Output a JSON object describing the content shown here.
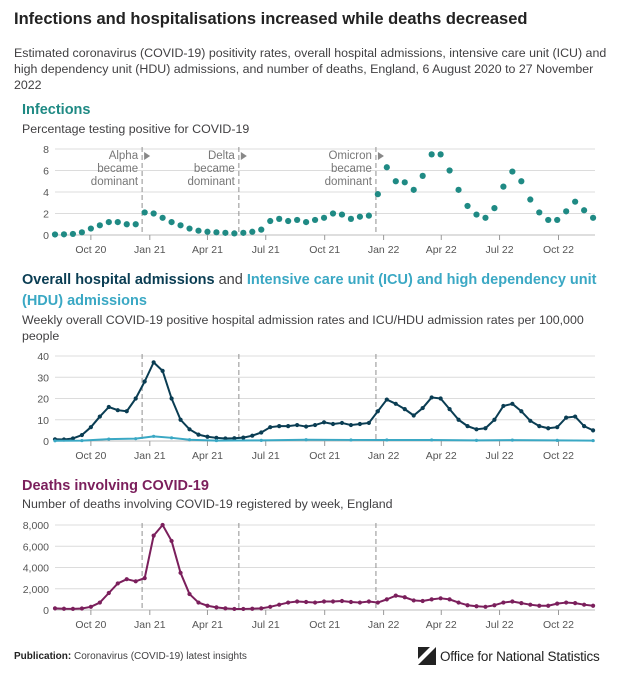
{
  "title": "Infections and hospitalisations increased while deaths decreased",
  "subtitle": "Estimated coronavirus (COVID-19) positivity rates, overall hospital admissions, intensive care unit (ICU) and high dependency unit (HDU) admissions, and number of deaths, England, 6 August 2020 to 27 November 2022",
  "colors": {
    "infections": "#1f8a84",
    "hospital": "#0a3d53",
    "icu": "#3aa8c4",
    "deaths": "#7b1f5c",
    "grid": "#dcdcdc",
    "vline": "#9a9a9a"
  },
  "sections": {
    "infections": {
      "title": "Infections",
      "subtitle": "Percentage testing positive for COVID-19"
    },
    "hospital": {
      "title_part1": "Overall hospital admissions",
      "title_part2": " and ",
      "title_part3": "Intensive care unit (ICU) and high dependency unit (HDU) admissions",
      "subtitle": "Weekly overall COVID-19 positive hospital admission rates and ICU/HDU admission rates per 100,000 people"
    },
    "deaths": {
      "title": "Deaths involving COVID-19",
      "subtitle": "Number of deaths involving COVID-19 registered by week, England"
    }
  },
  "footer": {
    "label": "Publication:",
    "text": "Coronavirus (COVID-19) latest insights"
  },
  "brand": "Office for National Statistics",
  "chart_data": [
    {
      "type": "scatter",
      "name": "infections",
      "x_range": [
        "2020-08-06",
        "2022-11-27"
      ],
      "ylim": [
        0,
        8
      ],
      "y_ticks": [
        "0",
        "2",
        "4",
        "6",
        "8"
      ],
      "x_ticks": [
        {
          "date": "2020-10-01",
          "label": "Oct 20"
        },
        {
          "date": "2021-01-01",
          "label": "Jan 21"
        },
        {
          "date": "2021-04-01",
          "label": "Apr 21"
        },
        {
          "date": "2021-07-01",
          "label": "Jul 21"
        },
        {
          "date": "2021-10-01",
          "label": "Oct 21"
        },
        {
          "date": "2022-01-01",
          "label": "Jan 22"
        },
        {
          "date": "2022-04-01",
          "label": "Apr 22"
        },
        {
          "date": "2022-07-01",
          "label": "Jul 22"
        },
        {
          "date": "2022-10-01",
          "label": "Oct 22"
        }
      ],
      "annotations": [
        {
          "date": "2020-12-20",
          "lines": [
            "Alpha",
            "became",
            "dominant"
          ]
        },
        {
          "date": "2021-05-20",
          "lines": [
            "Delta",
            "became",
            "dominant"
          ]
        },
        {
          "date": "2021-12-20",
          "lines": [
            "Omicron",
            "became",
            "dominant"
          ]
        }
      ],
      "series": [
        {
          "x": [
            "2020-08-06",
            "2020-08-20",
            "2020-09-03",
            "2020-09-17",
            "2020-10-01",
            "2020-10-15",
            "2020-10-29",
            "2020-11-12",
            "2020-11-26",
            "2020-12-10",
            "2020-12-24",
            "2021-01-07",
            "2021-01-21",
            "2021-02-04",
            "2021-02-18",
            "2021-03-04",
            "2021-03-18",
            "2021-04-01",
            "2021-04-15",
            "2021-04-29",
            "2021-05-13",
            "2021-05-27",
            "2021-06-10",
            "2021-06-24",
            "2021-07-08",
            "2021-07-22",
            "2021-08-05",
            "2021-08-19",
            "2021-09-02",
            "2021-09-16",
            "2021-09-30",
            "2021-10-14",
            "2021-10-28",
            "2021-11-11",
            "2021-11-25",
            "2021-12-09",
            "2021-12-23",
            "2022-01-06",
            "2022-01-20",
            "2022-02-03",
            "2022-02-17",
            "2022-03-03",
            "2022-03-17",
            "2022-03-31",
            "2022-04-14",
            "2022-04-28",
            "2022-05-12",
            "2022-05-26",
            "2022-06-09",
            "2022-06-23",
            "2022-07-07",
            "2022-07-21",
            "2022-08-04",
            "2022-08-18",
            "2022-09-01",
            "2022-09-15",
            "2022-09-29",
            "2022-10-13",
            "2022-10-27",
            "2022-11-10",
            "2022-11-24"
          ],
          "y": [
            0.05,
            0.06,
            0.1,
            0.25,
            0.6,
            0.9,
            1.2,
            1.2,
            1.0,
            1.0,
            2.1,
            2.0,
            1.6,
            1.2,
            0.9,
            0.6,
            0.4,
            0.3,
            0.25,
            0.2,
            0.15,
            0.2,
            0.3,
            0.5,
            1.3,
            1.5,
            1.3,
            1.4,
            1.2,
            1.4,
            1.6,
            2.0,
            1.9,
            1.5,
            1.7,
            1.8,
            3.8,
            6.3,
            5.0,
            4.9,
            4.2,
            5.5,
            7.5,
            7.5,
            6.0,
            4.2,
            2.7,
            1.9,
            1.6,
            2.5,
            4.5,
            5.9,
            5.0,
            3.3,
            2.1,
            1.4,
            1.4,
            2.2,
            3.1,
            2.3,
            1.6
          ]
        }
      ]
    },
    {
      "type": "line",
      "name": "hospital",
      "x_range": [
        "2020-08-06",
        "2022-11-27"
      ],
      "ylim": [
        0,
        40
      ],
      "y_ticks": [
        "0",
        "10",
        "20",
        "30",
        "40"
      ],
      "x_ticks": [
        {
          "date": "2020-10-01",
          "label": "Oct 20"
        },
        {
          "date": "2021-01-01",
          "label": "Jan 21"
        },
        {
          "date": "2021-04-01",
          "label": "Apr 21"
        },
        {
          "date": "2021-07-01",
          "label": "Jul 21"
        },
        {
          "date": "2021-10-01",
          "label": "Oct 21"
        },
        {
          "date": "2022-01-01",
          "label": "Jan 22"
        },
        {
          "date": "2022-04-01",
          "label": "Apr 22"
        },
        {
          "date": "2022-07-01",
          "label": "Jul 22"
        },
        {
          "date": "2022-10-01",
          "label": "Oct 22"
        }
      ],
      "vlines": [
        "2020-12-20",
        "2021-05-20",
        "2021-12-20"
      ],
      "series": [
        {
          "name": "Overall hospital admissions",
          "x": [
            "2020-08-06",
            "2020-08-20",
            "2020-09-03",
            "2020-09-17",
            "2020-10-01",
            "2020-10-15",
            "2020-10-29",
            "2020-11-12",
            "2020-11-26",
            "2020-12-10",
            "2020-12-24",
            "2021-01-07",
            "2021-01-21",
            "2021-02-04",
            "2021-02-18",
            "2021-03-04",
            "2021-03-18",
            "2021-04-01",
            "2021-04-15",
            "2021-04-29",
            "2021-05-13",
            "2021-05-27",
            "2021-06-10",
            "2021-06-24",
            "2021-07-08",
            "2021-07-22",
            "2021-08-05",
            "2021-08-19",
            "2021-09-02",
            "2021-09-16",
            "2021-09-30",
            "2021-10-14",
            "2021-10-28",
            "2021-11-11",
            "2021-11-25",
            "2021-12-09",
            "2021-12-23",
            "2022-01-06",
            "2022-01-20",
            "2022-02-03",
            "2022-02-17",
            "2022-03-03",
            "2022-03-17",
            "2022-03-31",
            "2022-04-14",
            "2022-04-28",
            "2022-05-12",
            "2022-05-26",
            "2022-06-09",
            "2022-06-23",
            "2022-07-07",
            "2022-07-21",
            "2022-08-04",
            "2022-08-18",
            "2022-09-01",
            "2022-09-15",
            "2022-09-29",
            "2022-10-13",
            "2022-10-27",
            "2022-11-10",
            "2022-11-24"
          ],
          "y": [
            0.8,
            0.7,
            1.2,
            2.8,
            6.5,
            11.5,
            16.0,
            14.5,
            14.0,
            20.0,
            28.0,
            37.0,
            33.0,
            20.0,
            10.0,
            5.5,
            3.0,
            2.0,
            1.5,
            1.2,
            1.3,
            1.6,
            2.5,
            4.0,
            6.5,
            7.0,
            7.0,
            7.5,
            6.8,
            7.5,
            8.8,
            8.0,
            8.5,
            7.5,
            8.0,
            8.5,
            14.0,
            19.5,
            17.5,
            15.0,
            12.0,
            15.5,
            20.5,
            20.0,
            15.0,
            10.0,
            7.0,
            5.5,
            6.0,
            10.0,
            16.5,
            17.5,
            14.0,
            9.5,
            7.0,
            6.0,
            6.5,
            11.0,
            11.5,
            7.0,
            5.0
          ]
        },
        {
          "name": "Intensive care unit (ICU) and high dependency unit (HDU) admissions",
          "x": [
            "2020-08-06",
            "2020-09-17",
            "2020-10-29",
            "2020-12-10",
            "2021-01-07",
            "2021-02-04",
            "2021-03-04",
            "2021-04-15",
            "2021-06-24",
            "2021-09-02",
            "2021-11-11",
            "2022-01-06",
            "2022-03-17",
            "2022-05-26",
            "2022-07-21",
            "2022-09-29",
            "2022-11-24"
          ],
          "y": [
            0.1,
            0.2,
            0.9,
            1.1,
            2.2,
            1.5,
            0.6,
            0.2,
            0.3,
            0.6,
            0.5,
            0.5,
            0.5,
            0.3,
            0.4,
            0.3,
            0.2
          ]
        }
      ]
    },
    {
      "type": "line",
      "name": "deaths",
      "x_range": [
        "2020-08-06",
        "2022-11-27"
      ],
      "ylim": [
        0,
        8000
      ],
      "y_ticks": [
        "0",
        "2,000",
        "4,000",
        "6,000",
        "8,000"
      ],
      "x_ticks": [
        {
          "date": "2020-10-01",
          "label": "Oct 20"
        },
        {
          "date": "2021-01-01",
          "label": "Jan 21"
        },
        {
          "date": "2021-04-01",
          "label": "Apr 21"
        },
        {
          "date": "2021-07-01",
          "label": "Jul 21"
        },
        {
          "date": "2021-10-01",
          "label": "Oct 21"
        },
        {
          "date": "2022-01-01",
          "label": "Jan 22"
        },
        {
          "date": "2022-04-01",
          "label": "Apr 22"
        },
        {
          "date": "2022-07-01",
          "label": "Jul 22"
        },
        {
          "date": "2022-10-01",
          "label": "Oct 22"
        }
      ],
      "vlines": [
        "2020-12-20",
        "2021-05-20",
        "2021-12-20"
      ],
      "series": [
        {
          "name": "Deaths involving COVID-19",
          "x": [
            "2020-08-06",
            "2020-08-20",
            "2020-09-03",
            "2020-09-17",
            "2020-10-01",
            "2020-10-15",
            "2020-10-29",
            "2020-11-12",
            "2020-11-26",
            "2020-12-10",
            "2020-12-24",
            "2021-01-07",
            "2021-01-21",
            "2021-02-04",
            "2021-02-18",
            "2021-03-04",
            "2021-03-18",
            "2021-04-01",
            "2021-04-15",
            "2021-04-29",
            "2021-05-13",
            "2021-05-27",
            "2021-06-10",
            "2021-06-24",
            "2021-07-08",
            "2021-07-22",
            "2021-08-05",
            "2021-08-19",
            "2021-09-02",
            "2021-09-16",
            "2021-09-30",
            "2021-10-14",
            "2021-10-28",
            "2021-11-11",
            "2021-11-25",
            "2021-12-09",
            "2021-12-23",
            "2022-01-06",
            "2022-01-20",
            "2022-02-03",
            "2022-02-17",
            "2022-03-03",
            "2022-03-17",
            "2022-03-31",
            "2022-04-14",
            "2022-04-28",
            "2022-05-12",
            "2022-05-26",
            "2022-06-09",
            "2022-06-23",
            "2022-07-07",
            "2022-07-21",
            "2022-08-04",
            "2022-08-18",
            "2022-09-01",
            "2022-09-15",
            "2022-09-29",
            "2022-10-13",
            "2022-10-27",
            "2022-11-10",
            "2022-11-24"
          ],
          "y": [
            150,
            120,
            110,
            140,
            300,
            700,
            1600,
            2500,
            2900,
            2700,
            3000,
            7000,
            8000,
            6500,
            3500,
            1500,
            700,
            400,
            250,
            150,
            100,
            100,
            120,
            150,
            300,
            500,
            700,
            800,
            750,
            700,
            800,
            800,
            850,
            750,
            700,
            800,
            700,
            1000,
            1350,
            1200,
            900,
            850,
            1000,
            1100,
            1000,
            700,
            450,
            350,
            300,
            450,
            700,
            800,
            650,
            500,
            400,
            400,
            600,
            700,
            650,
            500,
            400
          ]
        }
      ]
    }
  ]
}
